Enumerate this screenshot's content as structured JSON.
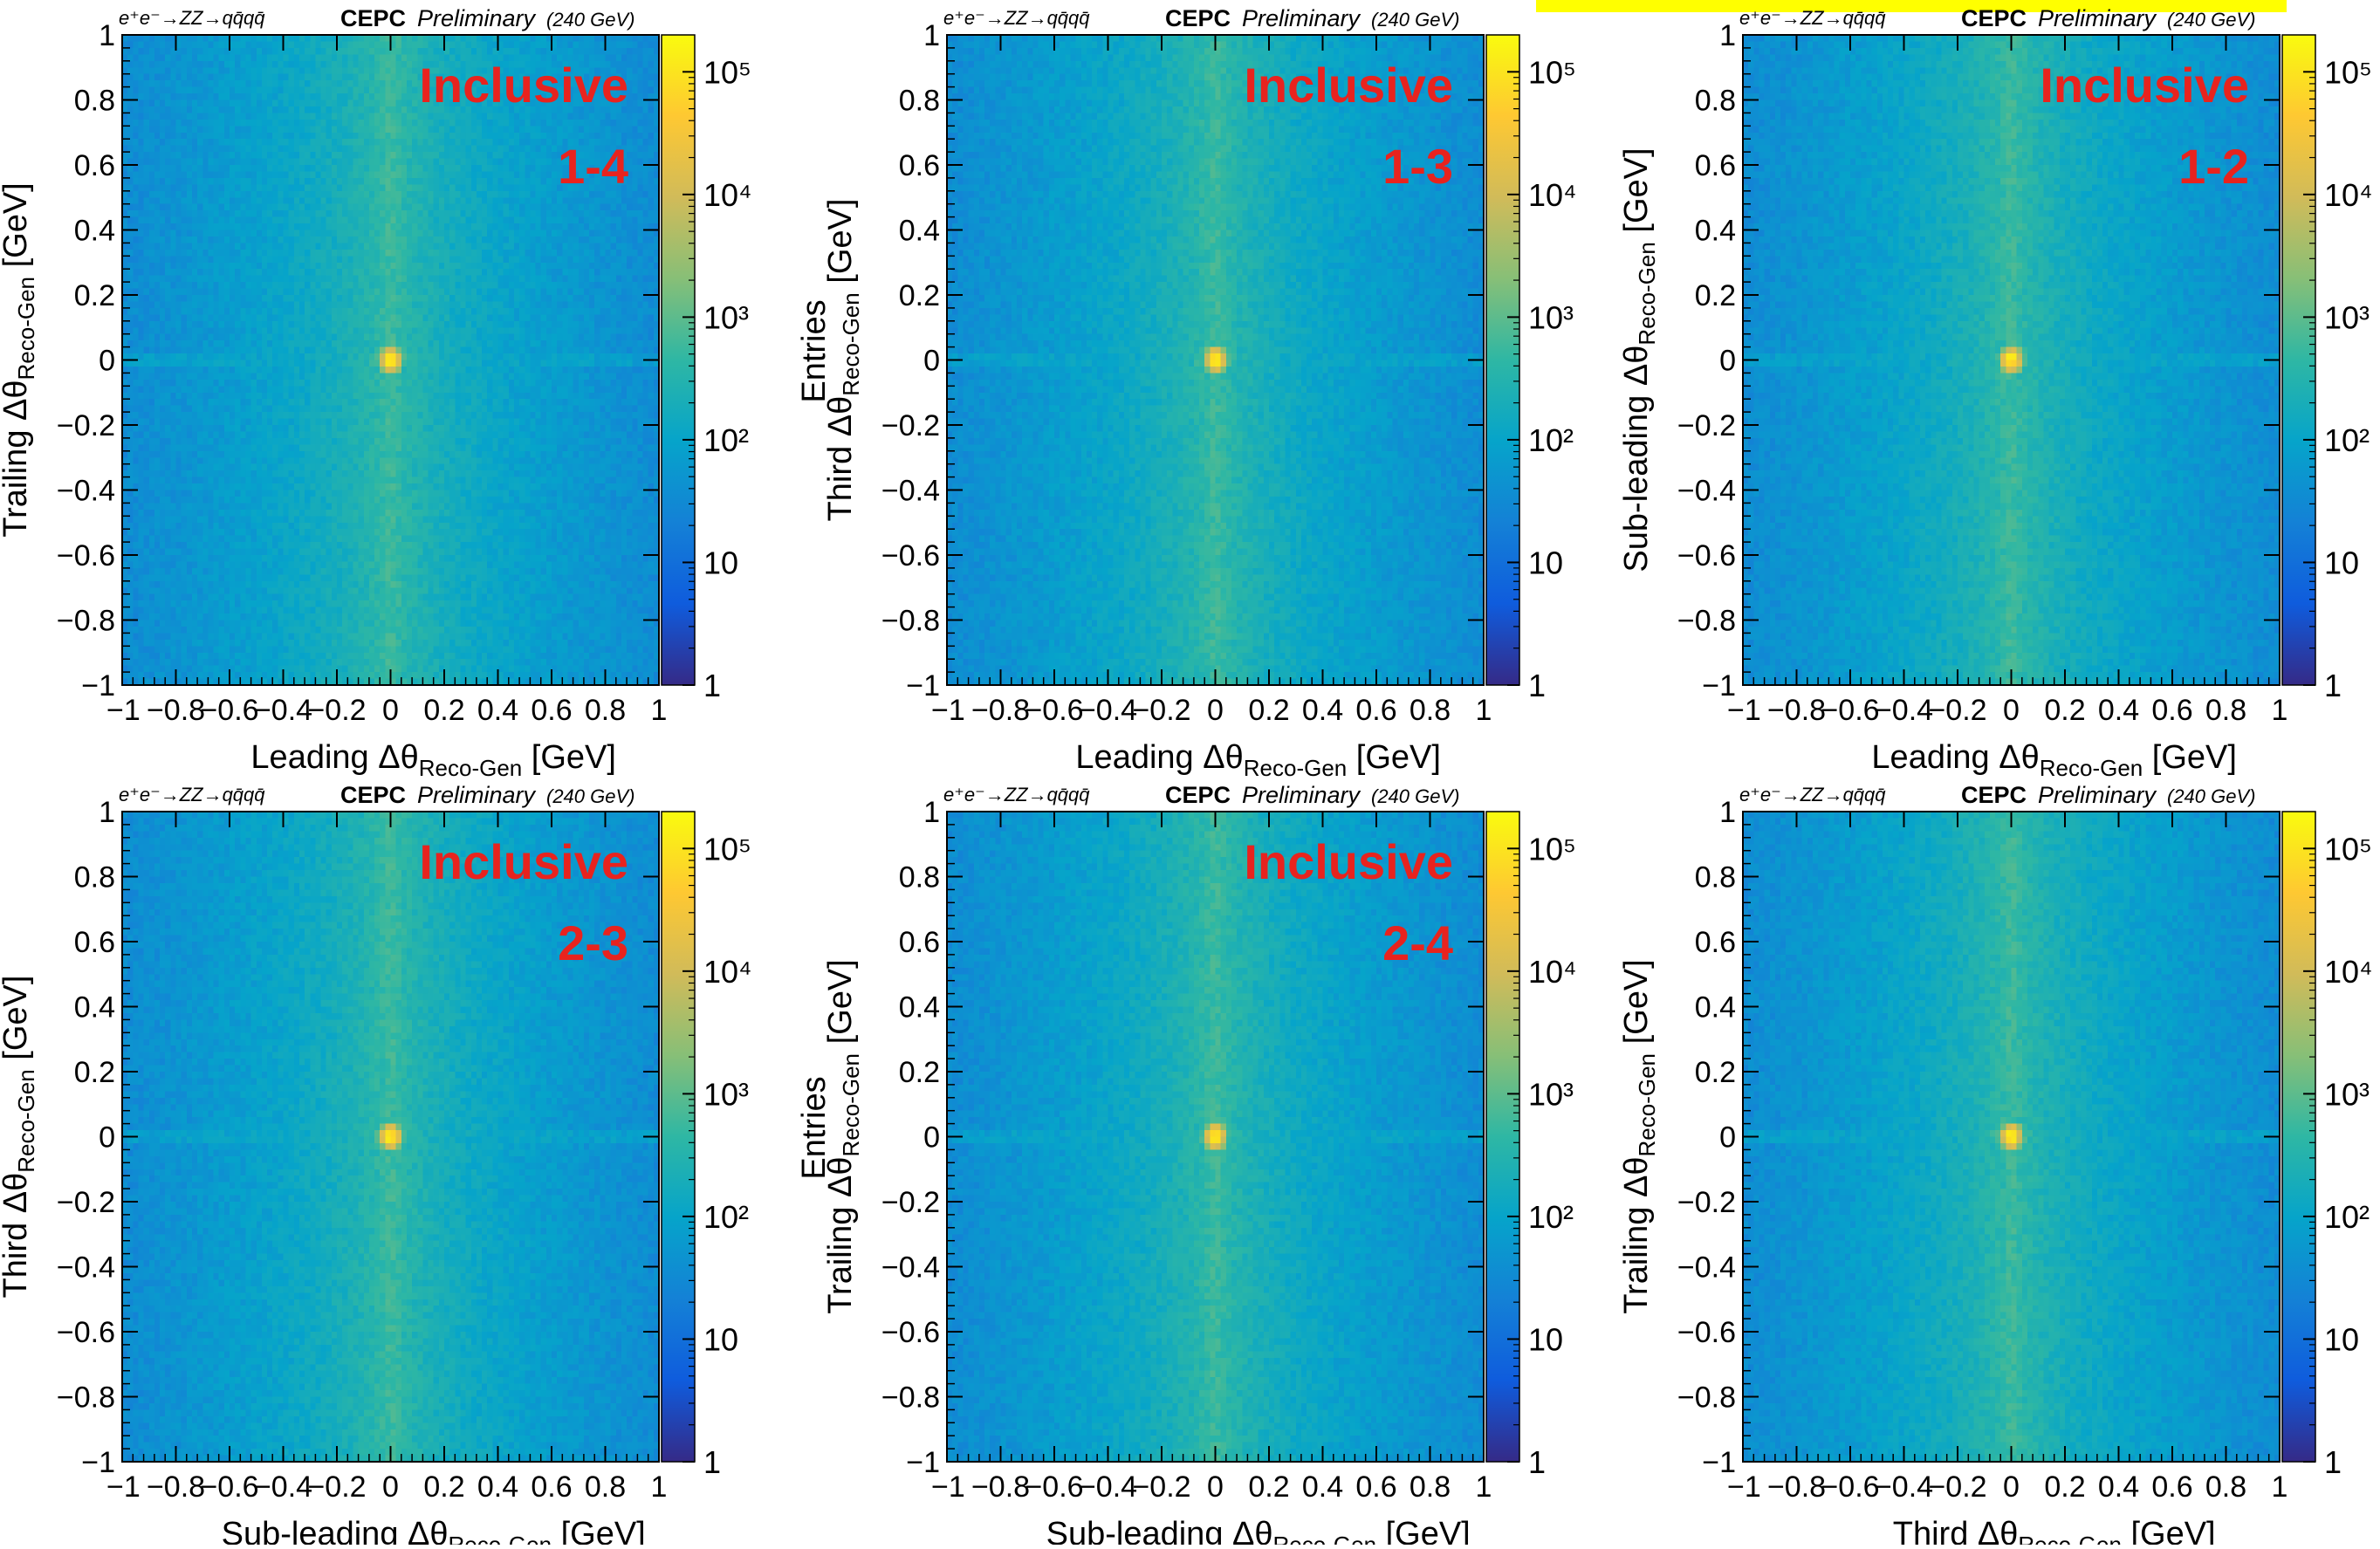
{
  "header": {
    "process": "e⁺e⁻→ZZ→qq̄qq̄",
    "experiment": "CEPC",
    "status": "Preliminary",
    "energy": "(240 GeV)"
  },
  "colorbar": {
    "label": "Entries",
    "ticks": [
      "1",
      "10",
      "10²",
      "10³",
      "10⁴",
      "10⁵"
    ],
    "colormap": "viridis-like",
    "colors": [
      "#352a87",
      "#0f5cdd",
      "#1481d6",
      "#06a4ca",
      "#2eb7a4",
      "#87bf77",
      "#d1bb59",
      "#fec832",
      "#f9fb0e"
    ]
  },
  "axis": {
    "tick_labels": [
      "−1",
      "−0.8",
      "−0.6",
      "−0.4",
      "−0.2",
      "0",
      "0.2",
      "0.4",
      "0.6",
      "0.8",
      "1"
    ],
    "delta_symbol": "Δθ",
    "subscript": "Reco-Gen",
    "unit": "[GeV]"
  },
  "accent_color": "#e8231e",
  "highlight_color": "#ffff00",
  "chart_data": [
    {
      "type": "heatmap",
      "label_main": "Inclusive",
      "label_pair": "1-4",
      "x_prefix": "Leading",
      "y_prefix": "Trailing",
      "xlim": [
        -1,
        1
      ],
      "ylim": [
        -1,
        1
      ],
      "zscale": "log",
      "zlim": [
        1,
        200000
      ],
      "peak": [
        0,
        0
      ],
      "grid": false
    },
    {
      "type": "heatmap",
      "label_main": "Inclusive",
      "label_pair": "1-3",
      "x_prefix": "Leading",
      "y_prefix": "Third",
      "xlim": [
        -1,
        1
      ],
      "ylim": [
        -1,
        1
      ],
      "zscale": "log",
      "zlim": [
        1,
        200000
      ],
      "peak": [
        0,
        0
      ],
      "grid": false
    },
    {
      "type": "heatmap",
      "label_main": "Inclusive",
      "label_pair": "1-2",
      "x_prefix": "Leading",
      "y_prefix": "Sub-leading",
      "xlim": [
        -1,
        1
      ],
      "ylim": [
        -1,
        1
      ],
      "zscale": "log",
      "zlim": [
        1,
        200000
      ],
      "peak": [
        0,
        0
      ],
      "grid": false
    },
    {
      "type": "heatmap",
      "label_main": "Inclusive",
      "label_pair": "2-3",
      "x_prefix": "Sub-leading",
      "y_prefix": "Third",
      "xlim": [
        -1,
        1
      ],
      "ylim": [
        -1,
        1
      ],
      "zscale": "log",
      "zlim": [
        1,
        200000
      ],
      "peak": [
        0,
        0
      ],
      "grid": false
    },
    {
      "type": "heatmap",
      "label_main": "Inclusive",
      "label_pair": "2-4",
      "x_prefix": "Sub-leading",
      "y_prefix": "Trailing",
      "xlim": [
        -1,
        1
      ],
      "ylim": [
        -1,
        1
      ],
      "zscale": "log",
      "zlim": [
        1,
        200000
      ],
      "peak": [
        0,
        0
      ],
      "grid": false
    },
    {
      "type": "heatmap",
      "label_main": "",
      "label_pair": "",
      "x_prefix": "Third",
      "y_prefix": "Trailing",
      "xlim": [
        -1,
        1
      ],
      "ylim": [
        -1,
        1
      ],
      "zscale": "log",
      "zlim": [
        1,
        200000
      ],
      "peak": [
        0,
        0
      ],
      "grid": false
    }
  ]
}
